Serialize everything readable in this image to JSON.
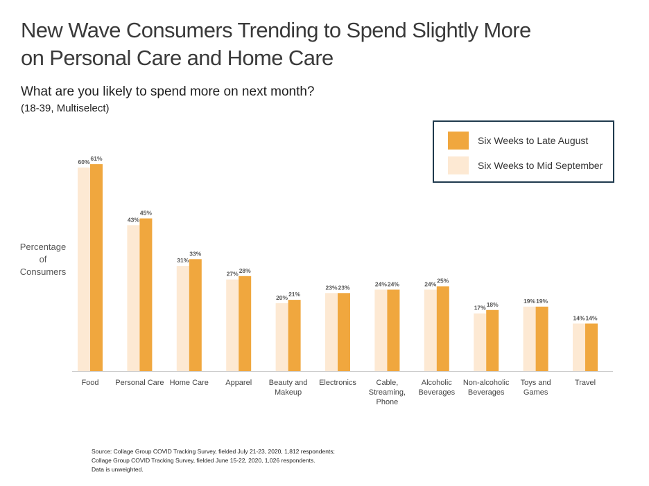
{
  "title_line1": "New Wave Consumers Trending to Spend Slightly More",
  "title_line2": "on Personal Care and Home Care",
  "subtitle": "What are you likely to spend more on next month?",
  "subtitle2": "(18-39, Multiselect)",
  "ylabel_lines": [
    "Percentage",
    "of",
    "Consumers"
  ],
  "source_lines": [
    "Source: Collage Group COVID Tracking Survey, fielded July 21-23, 2020, 1,812 respondents;",
    "Collage Group COVID Tracking Survey, fielded June 15-22, 2020, 1,026 respondents.",
    "Data is unweighted."
  ],
  "colors": {
    "late_august": "#f0a73e",
    "mid_september": "#fde9d3",
    "axis": "#cccccc",
    "legend_border": "#1f3a4d"
  },
  "chart_data": {
    "type": "bar",
    "categories": [
      [
        "Food"
      ],
      [
        "Personal Care"
      ],
      [
        "Home Care"
      ],
      [
        "Apparel"
      ],
      [
        "Beauty and",
        "Makeup"
      ],
      [
        "Electronics"
      ],
      [
        "Cable,",
        "Streaming,",
        "Phone"
      ],
      [
        "Alcoholic",
        "Beverages"
      ],
      [
        "Non-alcoholic",
        "Beverages"
      ],
      [
        "Toys and",
        "Games"
      ],
      [
        "Travel"
      ]
    ],
    "series": [
      {
        "name": "Six Weeks to Mid September",
        "values": [
          60,
          43,
          31,
          27,
          20,
          23,
          24,
          24,
          17,
          19,
          14
        ]
      },
      {
        "name": "Six Weeks to Late August",
        "values": [
          61,
          45,
          33,
          28,
          21,
          23,
          24,
          25,
          18,
          19,
          14
        ]
      }
    ],
    "legend": [
      "Six Weeks to Late August",
      "Six Weeks to Mid September"
    ],
    "legend_position": "top-right",
    "value_suffix": "%",
    "ylim": [
      0,
      70
    ],
    "grid": false
  }
}
